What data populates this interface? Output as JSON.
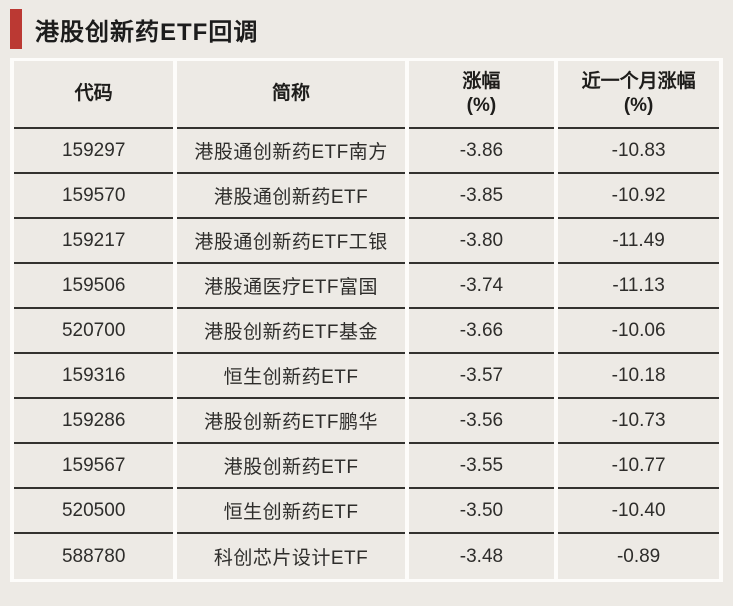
{
  "title": "港股创新药ETF回调",
  "colors": {
    "accent_red": "#bb3933",
    "background": "#edeae5",
    "gutter_white": "#fdfcfa",
    "row_border": "#33322f",
    "text": "#2e2d2b"
  },
  "table": {
    "headers": [
      {
        "label": "代码",
        "sub": ""
      },
      {
        "label": "简称",
        "sub": ""
      },
      {
        "label": "涨幅",
        "sub": "(%)"
      },
      {
        "label": "近一个月涨幅",
        "sub": "(%)"
      }
    ],
    "rows": [
      {
        "code": "159297",
        "name": "港股通创新药ETF南方",
        "change": "-3.86",
        "month_change": "-10.83"
      },
      {
        "code": "159570",
        "name": "港股通创新药ETF",
        "change": "-3.85",
        "month_change": "-10.92"
      },
      {
        "code": "159217",
        "name": "港股通创新药ETF工银",
        "change": "-3.80",
        "month_change": "-11.49"
      },
      {
        "code": "159506",
        "name": "港股通医疗ETF富国",
        "change": "-3.74",
        "month_change": "-11.13"
      },
      {
        "code": "520700",
        "name": "港股创新药ETF基金",
        "change": "-3.66",
        "month_change": "-10.06"
      },
      {
        "code": "159316",
        "name": "恒生创新药ETF",
        "change": "-3.57",
        "month_change": "-10.18"
      },
      {
        "code": "159286",
        "name": "港股创新药ETF鹏华",
        "change": "-3.56",
        "month_change": "-10.73"
      },
      {
        "code": "159567",
        "name": "港股创新药ETF",
        "change": "-3.55",
        "month_change": "-10.77"
      },
      {
        "code": "520500",
        "name": "恒生创新药ETF",
        "change": "-3.50",
        "month_change": "-10.40"
      },
      {
        "code": "588780",
        "name": "科创芯片设计ETF",
        "change": "-3.48",
        "month_change": "-0.89"
      }
    ]
  },
  "chart_data": {
    "type": "table",
    "title": "港股创新药ETF回调",
    "columns": [
      "代码",
      "简称",
      "涨幅(%)",
      "近一个月涨幅(%)"
    ],
    "rows": [
      [
        "159297",
        "港股通创新药ETF南方",
        -3.86,
        -10.83
      ],
      [
        "159570",
        "港股通创新药ETF",
        -3.85,
        -10.92
      ],
      [
        "159217",
        "港股通创新药ETF工银",
        -3.8,
        -11.49
      ],
      [
        "159506",
        "港股通医疗ETF富国",
        -3.74,
        -11.13
      ],
      [
        "520700",
        "港股创新药ETF基金",
        -3.66,
        -10.06
      ],
      [
        "159316",
        "恒生创新药ETF",
        -3.57,
        -10.18
      ],
      [
        "159286",
        "港股创新药ETF鹏华",
        -3.56,
        -10.73
      ],
      [
        "159567",
        "港股创新药ETF",
        -3.55,
        -10.77
      ],
      [
        "520500",
        "恒生创新药ETF",
        -3.5,
        -10.4
      ],
      [
        "588780",
        "科创芯片设计ETF",
        -3.48,
        -0.89
      ]
    ]
  }
}
